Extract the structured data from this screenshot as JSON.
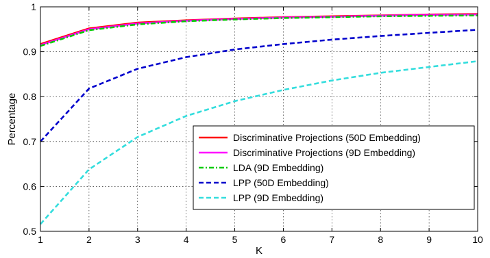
{
  "chart_data": {
    "type": "line",
    "title": "",
    "xlabel": "K",
    "ylabel": "Percentage",
    "xlim": [
      1,
      10
    ],
    "ylim": [
      0.5,
      1
    ],
    "x": [
      1,
      2,
      3,
      4,
      5,
      6,
      7,
      8,
      9,
      10
    ],
    "xticks": [
      "1",
      "2",
      "3",
      "4",
      "5",
      "6",
      "7",
      "8",
      "9",
      "10"
    ],
    "yticks": [
      0.5,
      0.6,
      0.7,
      0.8,
      0.9,
      1
    ],
    "ytick_labels": [
      "0.5",
      "0.6",
      "0.7",
      "0.8",
      "0.9",
      "1"
    ],
    "grid": true,
    "legend_position": "bottom-right",
    "series": [
      {
        "name": "Discriminative Projections (50D Embedding)",
        "color": "#ff0000",
        "dash": "solid",
        "values": [
          0.917,
          0.952,
          0.965,
          0.97,
          0.974,
          0.977,
          0.979,
          0.981,
          0.983,
          0.984
        ]
      },
      {
        "name": "Discriminative Projections (9D Embedding)",
        "color": "#ff00ff",
        "dash": "solid",
        "values": [
          0.915,
          0.95,
          0.963,
          0.969,
          0.973,
          0.976,
          0.978,
          0.98,
          0.982,
          0.983
        ]
      },
      {
        "name": "LDA (9D Embedding)",
        "color": "#00cc00",
        "dash": "dashdot",
        "values": [
          0.913,
          0.948,
          0.961,
          0.968,
          0.972,
          0.975,
          0.977,
          0.979,
          0.98,
          0.981
        ]
      },
      {
        "name": "LPP (50D Embedding)",
        "color": "#0000cc",
        "dash": "dashed",
        "values": [
          0.7,
          0.818,
          0.862,
          0.888,
          0.905,
          0.917,
          0.927,
          0.935,
          0.942,
          0.949
        ]
      },
      {
        "name": "LPP (9D Embedding)",
        "color": "#33dddd",
        "dash": "dashed",
        "values": [
          0.516,
          0.638,
          0.71,
          0.757,
          0.79,
          0.815,
          0.836,
          0.853,
          0.866,
          0.879
        ]
      }
    ]
  }
}
